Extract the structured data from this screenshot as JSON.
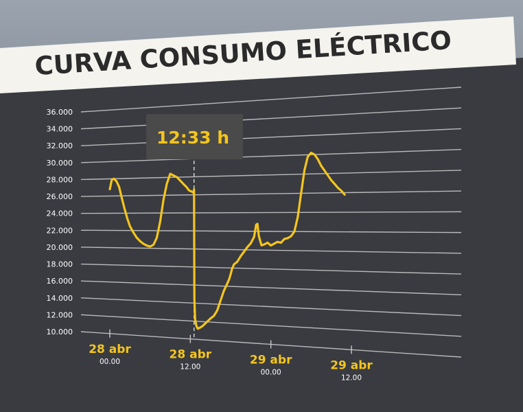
{
  "title": "CURVA CONSUMO ELÉCTRICO",
  "colors": {
    "line": "#f4c51d",
    "panel": "#393b41",
    "banner": "#f4f3ee",
    "title_text": "#2b2b2b",
    "grid": "#c9c9c9",
    "tick_text": "#ffffff",
    "annotation_bg": "#4a4a4a",
    "annotation_text": "#f4c51d"
  },
  "chart_data": {
    "type": "line",
    "title": "CURVA CONSUMO ELÉCTRICO",
    "ylim": [
      10000,
      36000
    ],
    "y_ticks": [
      "10.000",
      "12.000",
      "14.000",
      "16.000",
      "18.000",
      "20.000",
      "22.000",
      "24.000",
      "26.000",
      "28.000",
      "30.000",
      "32.000",
      "34.000",
      "36.000"
    ],
    "x_range_hours": [
      0,
      36
    ],
    "x_ticks": [
      {
        "date": "28 abr",
        "time": "00.00",
        "hour": 0
      },
      {
        "date": "28 abr",
        "time": "12.00",
        "hour": 12
      },
      {
        "date": "29 abr",
        "time": "00.00",
        "hour": 24
      },
      {
        "date": "29 abr",
        "time": "12.00",
        "hour": 36
      }
    ],
    "annotation": {
      "label": "12:33 h",
      "hour": 12.55
    },
    "grid": true,
    "legend": "none",
    "series": [
      {
        "x": [
          0,
          0.3,
          0.6,
          1,
          1.4,
          1.8,
          2.2,
          2.6,
          3,
          3.5,
          4,
          4.5,
          5,
          5.5,
          6,
          6.5,
          7,
          7.5,
          8,
          8.5,
          9,
          9.5,
          10,
          10.5,
          11,
          11.4,
          11.8,
          12.1,
          12.35,
          12.5,
          12.55,
          12.6,
          12.7,
          12.9,
          13.1,
          13.4,
          13.8,
          14.2,
          14.6,
          15,
          15.5,
          16,
          16.5,
          17,
          17.5,
          17.8,
          18,
          18.2,
          18.5,
          19,
          19.5,
          20,
          20.5,
          21,
          21.5,
          21.8,
          22,
          22.2,
          22.6,
          23,
          23.5,
          24,
          24.5,
          25,
          25.5,
          26,
          26.5,
          27,
          27.5,
          28,
          28.5,
          29,
          29.5,
          30,
          30.5,
          31,
          31.5,
          32,
          32.5,
          33,
          33.5,
          34,
          34.5,
          35
        ],
        "values": [
          26800,
          27900,
          28000,
          27700,
          27000,
          25700,
          24500,
          23400,
          22500,
          21800,
          21200,
          20800,
          20500,
          20300,
          20200,
          20400,
          21200,
          23000,
          25500,
          27300,
          28400,
          28200,
          28000,
          27600,
          27200,
          26900,
          26500,
          26400,
          26300,
          26200,
          26600,
          14500,
          12300,
          11500,
          11200,
          11300,
          11500,
          11800,
          12100,
          12400,
          12700,
          13300,
          14400,
          15500,
          16300,
          16800,
          17300,
          17900,
          18400,
          18700,
          19300,
          19800,
          20300,
          20700,
          21400,
          22700,
          22800,
          21500,
          20500,
          20600,
          20800,
          20500,
          20700,
          20900,
          20800,
          21200,
          21300,
          21500,
          22000,
          23500,
          26000,
          28400,
          29800,
          30200,
          30000,
          29500,
          28800,
          28300,
          27800,
          27300,
          26900,
          26500,
          26200,
          25800
        ]
      }
    ]
  }
}
